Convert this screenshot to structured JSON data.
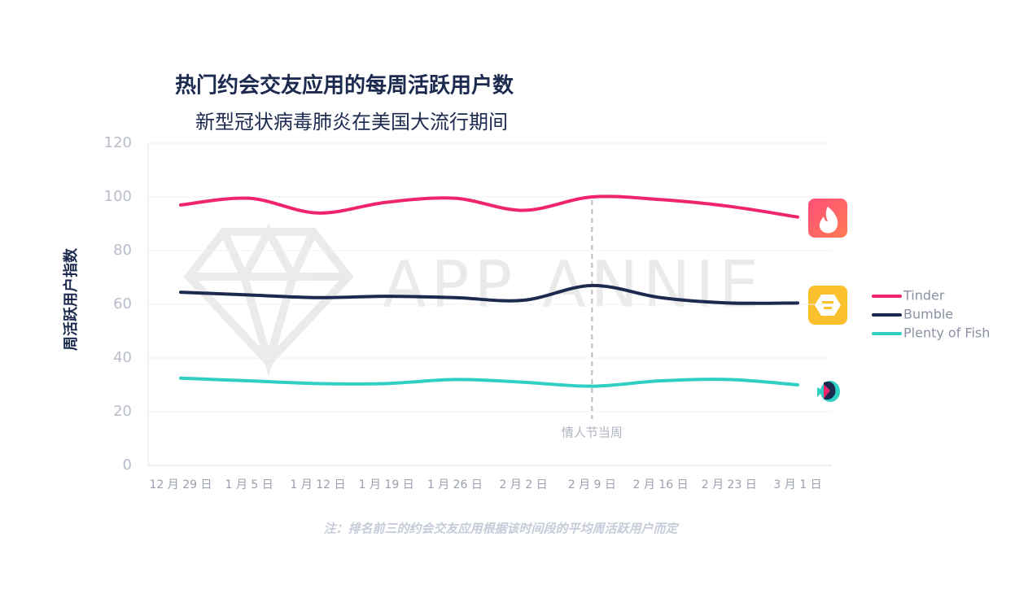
{
  "chart_data": {
    "type": "line",
    "title": "热门约会交友应用的每周活跃用户数",
    "subtitle": "新型冠状病毒肺炎在美国大流行期间",
    "y_label": "周活跃用户指数",
    "watermark": "APP ANNIE",
    "note": "注：排名前三的约会交友应用根据该时间段的平均周活跃用户而定",
    "annotation": {
      "text": "情人节当周",
      "x": "2 月 9 日"
    },
    "categories": [
      "12 月 29 日",
      "1 月 5 日",
      "1 月 12 日",
      "1 月 19 日",
      "1 月 26 日",
      "2 月 2 日",
      "2 月 9 日",
      "2 月 16 日",
      "2 月 23 日",
      "3 月 1 日"
    ],
    "series": [
      {
        "name": "Tinder",
        "color": "#f0246e",
        "values": [
          97,
          99.5,
          94,
          98,
          99.5,
          95,
          100,
          99,
          96.5,
          92.5
        ]
      },
      {
        "name": "Bumble",
        "color": "#1b2a4e",
        "values": [
          64.5,
          63.5,
          62.5,
          63,
          62.5,
          61.5,
          67,
          62.5,
          60.5,
          60.5
        ]
      },
      {
        "name": "Plenty of Fish",
        "color": "#2fcfc3",
        "values": [
          32.5,
          31.5,
          30.5,
          30.5,
          32,
          31,
          29.5,
          31.5,
          32,
          30
        ]
      }
    ],
    "ylim": [
      0,
      120
    ],
    "yticks": [
      0,
      20,
      40,
      60,
      80,
      100,
      120
    ],
    "grid": true
  }
}
